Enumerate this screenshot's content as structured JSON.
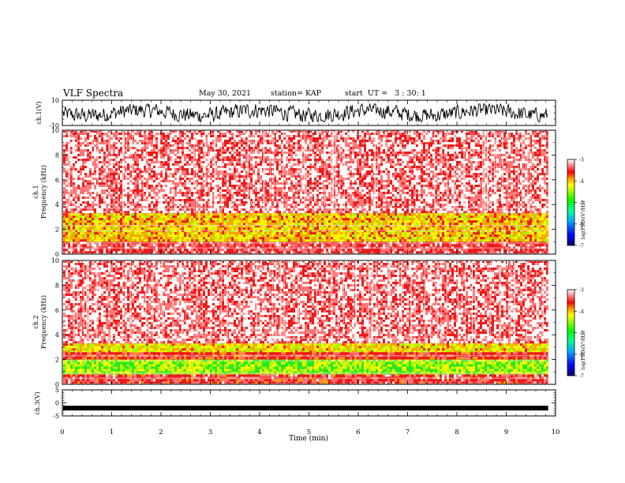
{
  "header": {
    "title": "VLF Spectra",
    "date": "May 30, 2021",
    "station": "station= KAP",
    "start": "start  UT =   3 : 30: 1"
  },
  "chart_data": [
    {
      "type": "line",
      "panel": "ch1-waveform",
      "ylabel": "ch.1(V)",
      "ylim": [
        -10,
        10
      ],
      "y_ticks": [
        "10",
        "-10"
      ],
      "xlim": [
        0,
        10
      ],
      "series_description_values": {
        "min": -7,
        "max": 7,
        "mean": 0
      }
    },
    {
      "type": "heatmap",
      "panel": "ch1-spectrogram",
      "ylabel_top": "ch.1",
      "ylabel": "Frequency  (kHz)",
      "ylim": [
        0,
        10
      ],
      "y_ticks": [
        "0",
        "2",
        "4",
        "6",
        "8",
        "10"
      ],
      "xlim": [
        0,
        10
      ],
      "bands": [
        {
          "f_from": 0,
          "f_to": 1.0,
          "level": -3.6
        },
        {
          "f_from": 1.0,
          "f_to": 3.3,
          "level": -4.4
        },
        {
          "f_from": 3.3,
          "f_to": 10,
          "level": -3.4
        }
      ],
      "colorbar": {
        "label": "log(PSD)(V²/Hz)",
        "ticks": [
          "-3",
          "-4",
          "-5",
          "-6",
          "-7"
        ],
        "range": [
          -7,
          -3
        ]
      }
    },
    {
      "type": "heatmap",
      "panel": "ch2-spectrogram",
      "ylabel_top": "ch.2",
      "ylabel": "Frequency  (kHz)",
      "ylim": [
        0,
        10
      ],
      "y_ticks": [
        "0",
        "2",
        "4",
        "6",
        "8",
        "10"
      ],
      "xlim": [
        0,
        10
      ],
      "bands": [
        {
          "f_from": 0,
          "f_to": 0.8,
          "level": -3.7
        },
        {
          "f_from": 0.8,
          "f_to": 2.0,
          "level": -4.9
        },
        {
          "f_from": 2.0,
          "f_to": 2.6,
          "level": -3.8
        },
        {
          "f_from": 2.6,
          "f_to": 3.3,
          "level": -4.5
        },
        {
          "f_from": 3.3,
          "f_to": 10,
          "level": -3.4
        }
      ],
      "colorbar": {
        "label": "log(PSD)(V²/Hz)",
        "ticks": [
          "-3",
          "-4",
          "-5",
          "-6",
          "-7"
        ],
        "range": [
          -7,
          -3
        ]
      }
    },
    {
      "type": "line",
      "panel": "ch3-waveform",
      "ylabel": "ch.3(V)",
      "ylim": [
        -5,
        5
      ],
      "y_ticks": [
        "5",
        "0",
        "-5"
      ],
      "xlim": [
        0,
        10
      ],
      "x_ticks": [
        "0",
        "1",
        "2",
        "3",
        "4",
        "5",
        "6",
        "7",
        "8",
        "9",
        "10"
      ],
      "xlabel": "Time  (min)",
      "level_value": -2
    }
  ],
  "colors": {
    "bg": "#ffffff",
    "axis": "#000000",
    "trace": "#000000",
    "red": "#ee1a1a",
    "yellow": "#e8e800",
    "green": "#22dd22",
    "colormap": [
      "#000077",
      "#0000ff",
      "#00aaff",
      "#00ffaa",
      "#00ff00",
      "#aaff00",
      "#ffff00",
      "#ffaa00",
      "#ff0000",
      "#ff6666",
      "#ffffff"
    ]
  }
}
